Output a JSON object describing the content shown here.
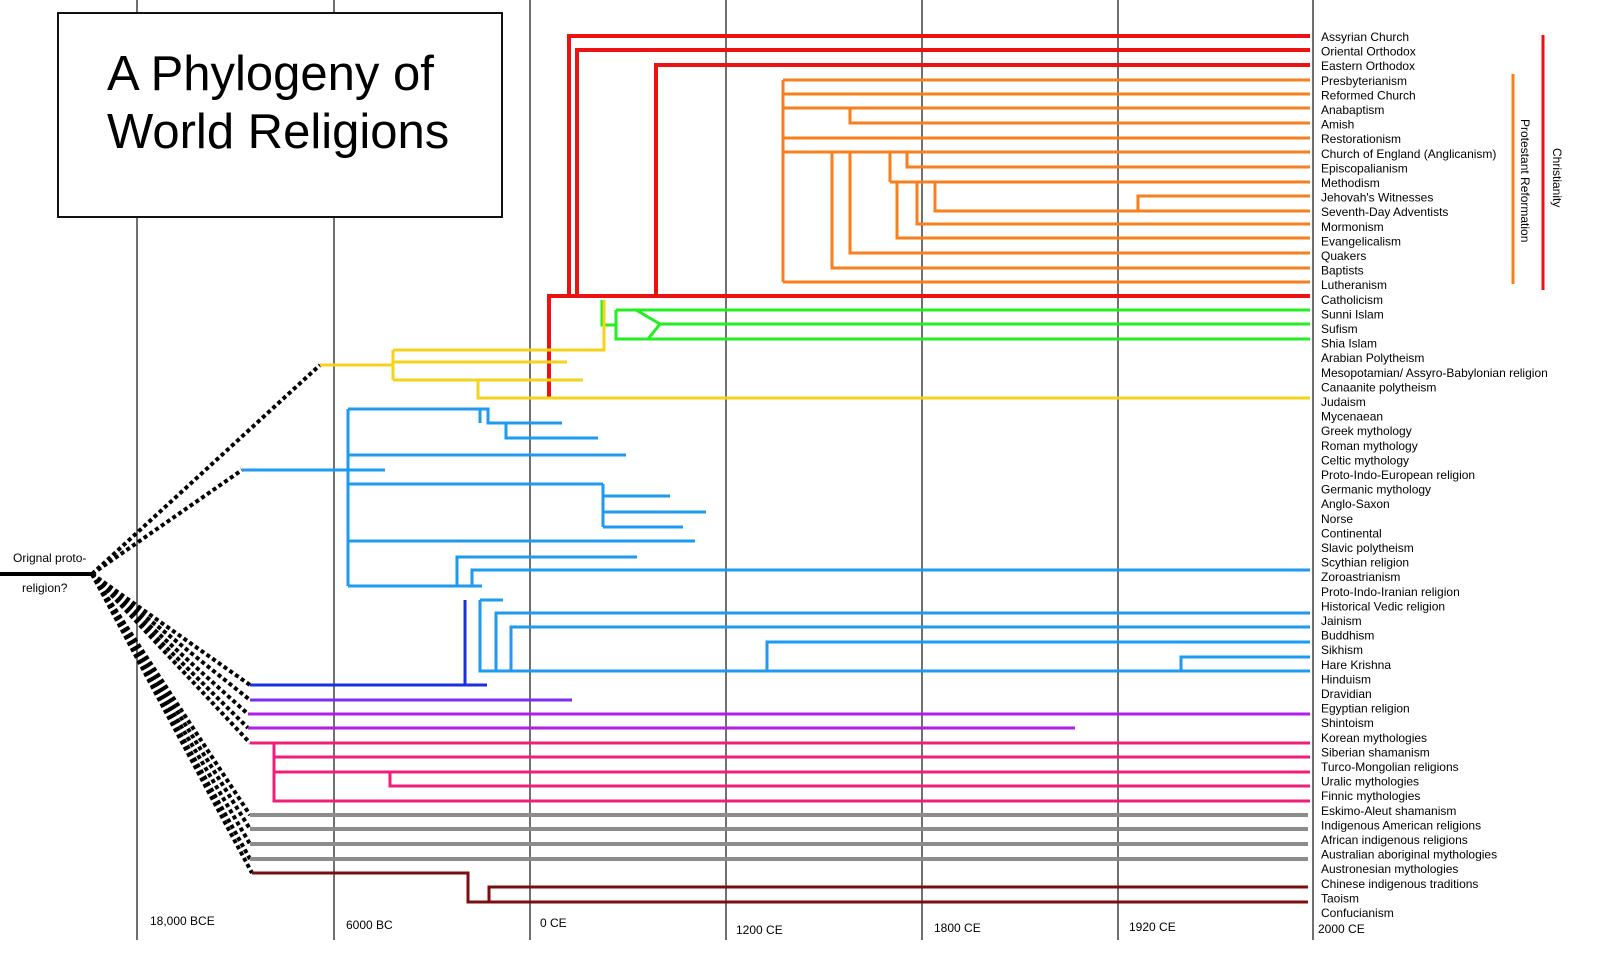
{
  "title": {
    "line1": "A Phylogeny of",
    "line2": "World Religions"
  },
  "root_label": {
    "line1": "Orignal proto-",
    "line2": "religion?"
  },
  "timeline_labels": [
    "18,000 BCE",
    "6000 BC",
    "0 CE",
    "1200 CE",
    "1800 CE",
    "1920 CE",
    "2000 CE"
  ],
  "religions": [
    "Assyrian Church",
    "Oriental Orthodox",
    "Eastern Orthodox",
    "Presbyterianism",
    "Reformed Church",
    "Anabaptism",
    "Amish",
    "Restorationism",
    "Church of England (Anglicanism)",
    "Episcopalianism",
    "Methodism",
    "Jehovah's Witnesses",
    "Seventh-Day Adventists",
    "Mormonism",
    "Evangelicalism",
    "Quakers",
    "Baptists",
    "Lutheranism",
    "Catholicism",
    "Sunni Islam",
    "Sufism",
    "Shia Islam",
    "Arabian Polytheism",
    "Mesopotamian/ Assyro-Babylonian religion",
    "Canaanite polytheism",
    "Judaism",
    "Mycenaean",
    "Greek mythology",
    "Roman mythology",
    "Celtic mythology",
    "Proto-Indo-European religion",
    "Germanic mythology",
    "Anglo-Saxon",
    "Norse",
    "Continental",
    "Slavic polytheism",
    "Scythian religion",
    "Zoroastrianism",
    "Proto-Indo-Iranian religion",
    "Historical Vedic religion",
    "Jainism",
    "Buddhism",
    "Sikhism",
    "Hare Krishna",
    "Hinduism",
    "Dravidian",
    "Egyptian religion",
    "Shintoism",
    "Korean mythologies",
    "Siberian shamanism",
    "Turco-Mongolian religions",
    "Uralic mythologies",
    " Finnic mythologies",
    "Eskimo-Aleut shamanism",
    "Indigenous American religions",
    "African indigenous religions",
    "Australian aboriginal mythologies",
    "Austronesian mythologies",
    "Chinese indigenous traditions",
    "Taoism",
    "Confucianism"
  ],
  "brackets": {
    "christianity": "Christianity",
    "protestant": "Protestant Reformation"
  },
  "colors": {
    "christian_root": "#ee1111",
    "protestant": "#f77f1e",
    "islam": "#22ee22",
    "semitic": "#f5d31a",
    "indo_european": "#1e9af0",
    "dravidian": "#1a2fe0",
    "egyptian": "#7a2ef0",
    "shinto": "#b01ee8",
    "siberian": "#f01e78",
    "indigenous": "#8c8c8c",
    "chinese": "#7a0f0f",
    "axis": "#111111"
  }
}
